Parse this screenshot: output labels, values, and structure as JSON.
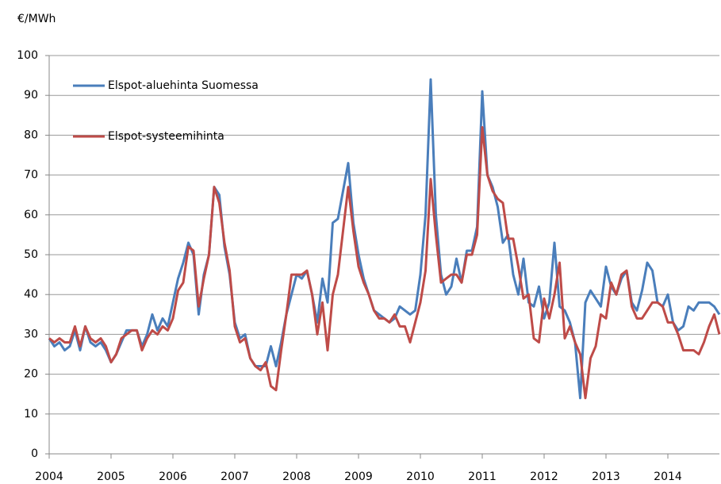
{
  "chart_data": {
    "type": "line",
    "ylabel": "€/MWh",
    "categories": [
      "2004",
      null,
      null,
      null,
      null,
      null,
      null,
      null,
      null,
      null,
      null,
      null,
      "2005",
      null,
      null,
      null,
      null,
      null,
      null,
      null,
      null,
      null,
      null,
      null,
      "2006",
      null,
      null,
      null,
      null,
      null,
      null,
      null,
      null,
      null,
      null,
      null,
      "2007",
      null,
      null,
      null,
      null,
      null,
      null,
      null,
      null,
      null,
      null,
      null,
      "2008",
      null,
      null,
      null,
      null,
      null,
      null,
      null,
      null,
      null,
      null,
      null,
      "2009",
      null,
      null,
      null,
      null,
      null,
      null,
      null,
      null,
      null,
      null,
      null,
      "2010",
      null,
      null,
      null,
      null,
      null,
      null,
      null,
      null,
      null,
      null,
      null,
      "2011",
      null,
      null,
      null,
      null,
      null,
      null,
      null,
      null,
      null,
      null,
      null,
      "2012",
      null,
      null,
      null,
      null,
      null,
      null,
      null,
      null,
      null,
      null,
      null,
      "2013",
      null,
      null,
      null,
      null,
      null,
      null,
      null,
      null,
      null,
      null,
      null,
      "2014",
      null,
      null,
      null,
      null,
      null,
      null,
      null,
      null,
      null,
      null
    ],
    "series": [
      {
        "name": "Elspot-aluehinta Suomessa",
        "color": "#4a7ebb",
        "values": [
          29,
          27,
          28,
          26,
          27,
          31,
          26,
          32,
          28,
          27,
          28,
          26,
          23,
          25,
          28,
          31,
          31,
          31,
          27,
          30,
          35,
          31,
          34,
          32,
          38,
          44,
          48,
          53,
          50,
          35,
          45,
          50,
          67,
          65,
          52,
          45,
          33,
          29,
          30,
          24,
          22,
          22,
          22,
          27,
          22,
          28,
          35,
          40,
          45,
          44,
          46,
          40,
          33,
          44,
          38,
          58,
          59,
          66,
          73,
          58,
          50,
          44,
          40,
          36,
          35,
          34,
          33,
          34,
          37,
          36,
          35,
          36,
          45,
          60,
          94,
          60,
          45,
          40,
          42,
          49,
          43,
          51,
          51,
          57,
          91,
          70,
          67,
          62,
          53,
          55,
          45,
          40,
          49,
          38,
          37,
          42,
          34,
          38,
          53,
          37,
          36,
          33,
          28,
          14,
          38,
          41,
          39,
          37,
          47,
          42,
          40,
          44,
          46,
          38,
          36,
          41,
          48,
          46,
          38,
          37,
          40,
          33,
          31,
          32,
          37,
          36,
          38,
          38,
          38,
          37,
          35
        ]
      },
      {
        "name": "Elspot-systeemihinta",
        "color": "#be4b48",
        "values": [
          29,
          28,
          29,
          28,
          28,
          32,
          27,
          32,
          29,
          28,
          29,
          27,
          23,
          25,
          29,
          30,
          31,
          31,
          26,
          29,
          31,
          30,
          32,
          31,
          34,
          41,
          43,
          52,
          51,
          37,
          44,
          50,
          67,
          63,
          53,
          46,
          32,
          28,
          29,
          24,
          22,
          21,
          23,
          17,
          16,
          26,
          35,
          45,
          45,
          45,
          46,
          40,
          30,
          38,
          26,
          40,
          45,
          56,
          67,
          56,
          47,
          43,
          40,
          36,
          34,
          34,
          33,
          35,
          32,
          32,
          28,
          33,
          38,
          46,
          69,
          55,
          43,
          44,
          45,
          45,
          43,
          50,
          50,
          55,
          82,
          70,
          66,
          64,
          63,
          54,
          54,
          47,
          39,
          40,
          29,
          28,
          39,
          34,
          40,
          48,
          29,
          32,
          28,
          25,
          14,
          24,
          27,
          35,
          34,
          43,
          40,
          45,
          46,
          37,
          34,
          34,
          36,
          38,
          38,
          37,
          33,
          33,
          30,
          26,
          26,
          26,
          25,
          28,
          32,
          35,
          30
        ]
      }
    ],
    "ylim": [
      0,
      100
    ],
    "yticks": [
      0,
      10,
      20,
      30,
      40,
      50,
      60,
      70,
      80,
      90,
      100
    ],
    "grid": true
  }
}
